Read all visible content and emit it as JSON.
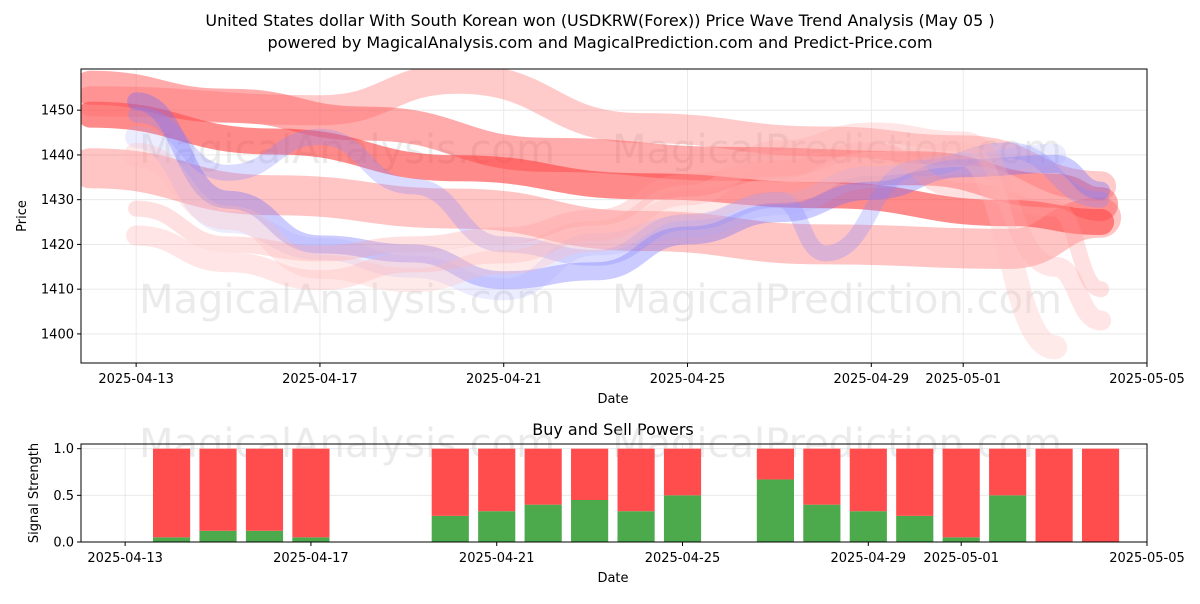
{
  "chart_data": [
    {
      "type": "line",
      "title_line1": "United States dollar With South Korean won (USDKRW(Forex)) Price Wave Trend Analysis (May 05 )",
      "title_line2": "powered by MagicalAnalysis.com and MagicalPrediction.com and Predict-Price.com",
      "xlabel": "Date",
      "ylabel": "Price",
      "ylim": [
        1393.5,
        1459.2
      ],
      "yticks": [
        1400,
        1410,
        1420,
        1430,
        1440,
        1450
      ],
      "xlim": [
        "2025-04-11.8",
        "2025-05-05.0"
      ],
      "xticks": [
        "2025-04-13",
        "2025-04-17",
        "2025-04-21",
        "2025-04-25",
        "2025-04-29",
        "2025-05-01",
        "2025-05-05"
      ],
      "watermarks": [
        "MagicalAnalysis.com",
        "MagicalPrediction.com",
        "MagicalAnalysis.com",
        "MagicalPrediction.com"
      ],
      "series": [
        {
          "name": "red-wave-main",
          "color": "#ff2a2a",
          "points": [
            [
              "2025-04-12",
              1449
            ],
            [
              "2025-04-16",
              1443
            ],
            [
              "2025-04-20",
              1437
            ],
            [
              "2025-04-24",
              1433
            ],
            [
              "2025-04-28",
              1431
            ],
            [
              "2025-05-02",
              1427
            ],
            [
              "2025-05-04",
              1425
            ]
          ]
        },
        {
          "name": "red-wave-upper",
          "color": "#ff4444",
          "points": [
            [
              "2025-04-12",
              1455
            ],
            [
              "2025-04-15",
              1451
            ],
            [
              "2025-04-18",
              1447
            ],
            [
              "2025-04-22",
              1440
            ],
            [
              "2025-04-26",
              1438
            ],
            [
              "2025-04-30",
              1437
            ],
            [
              "2025-05-03",
              1432
            ],
            [
              "2025-05-04",
              1429
            ]
          ]
        },
        {
          "name": "red-wave-lower",
          "color": "#ff5555",
          "points": [
            [
              "2025-04-12",
              1437
            ],
            [
              "2025-04-16",
              1431
            ],
            [
              "2025-04-20",
              1428
            ],
            [
              "2025-04-24",
              1423
            ],
            [
              "2025-04-28",
              1420
            ],
            [
              "2025-05-02",
              1419
            ],
            [
              "2025-05-04",
              1426
            ]
          ]
        },
        {
          "name": "red-wave-high",
          "color": "#ff6666",
          "points": [
            [
              "2025-04-12",
              1452
            ],
            [
              "2025-04-17",
              1450
            ],
            [
              "2025-04-20",
              1457
            ],
            [
              "2025-04-24",
              1446
            ],
            [
              "2025-04-28",
              1443
            ],
            [
              "2025-05-01",
              1441
            ],
            [
              "2025-05-04",
              1433
            ]
          ]
        },
        {
          "name": "blue-wave-1",
          "color": "#6b6bff",
          "points": [
            [
              "2025-04-13",
              1452
            ],
            [
              "2025-04-15",
              1430
            ],
            [
              "2025-04-17",
              1420
            ],
            [
              "2025-04-19",
              1418
            ],
            [
              "2025-04-21",
              1412
            ],
            [
              "2025-04-23",
              1414
            ],
            [
              "2025-04-25",
              1422
            ],
            [
              "2025-04-27",
              1427
            ],
            [
              "2025-04-29",
              1432
            ],
            [
              "2025-05-01",
              1437
            ],
            [
              "2025-05-03",
              1438
            ],
            [
              "2025-05-04",
              1432
            ]
          ]
        },
        {
          "name": "blue-wave-2",
          "color": "#8888ff",
          "points": [
            [
              "2025-04-13",
              1449
            ],
            [
              "2025-04-15",
              1436
            ],
            [
              "2025-04-17",
              1444
            ],
            [
              "2025-04-19",
              1433
            ],
            [
              "2025-04-21",
              1420
            ],
            [
              "2025-04-23",
              1417
            ],
            [
              "2025-04-25",
              1425
            ],
            [
              "2025-04-27",
              1430
            ],
            [
              "2025-04-28",
              1418
            ],
            [
              "2025-04-30",
              1437
            ],
            [
              "2025-05-02",
              1441
            ],
            [
              "2025-05-04",
              1430
            ]
          ]
        },
        {
          "name": "blue-wave-3",
          "color": "#aaaaff",
          "points": [
            [
              "2025-04-13",
              1444
            ],
            [
              "2025-04-15",
              1425
            ],
            [
              "2025-04-17",
              1419
            ],
            [
              "2025-04-19",
              1415
            ],
            [
              "2025-04-21",
              1410
            ],
            [
              "2025-04-23",
              1420
            ],
            [
              "2025-04-25",
              1424
            ],
            [
              "2025-04-27",
              1429
            ],
            [
              "2025-04-29",
              1435
            ],
            [
              "2025-05-01",
              1438
            ],
            [
              "2025-05-03",
              1440
            ]
          ]
        },
        {
          "name": "pink-wave-1",
          "color": "#ff9999",
          "points": [
            [
              "2025-04-13",
              1428
            ],
            [
              "2025-04-15",
              1420
            ],
            [
              "2025-04-17",
              1418
            ],
            [
              "2025-04-19",
              1420
            ],
            [
              "2025-04-21",
              1422
            ],
            [
              "2025-04-23",
              1426
            ],
            [
              "2025-04-25",
              1434
            ],
            [
              "2025-04-27",
              1437
            ],
            [
              "2025-04-29",
              1441
            ],
            [
              "2025-05-01",
              1432
            ],
            [
              "2025-05-03",
              1428
            ],
            [
              "2025-05-04",
              1410
            ]
          ]
        },
        {
          "name": "pink-wave-2",
          "color": "#ffaaaa",
          "points": [
            [
              "2025-04-13",
              1422
            ],
            [
              "2025-04-15",
              1416
            ],
            [
              "2025-04-17",
              1412
            ],
            [
              "2025-04-19",
              1416
            ],
            [
              "2025-04-21",
              1418
            ],
            [
              "2025-04-23",
              1423
            ],
            [
              "2025-04-25",
              1431
            ],
            [
              "2025-04-27",
              1441
            ],
            [
              "2025-04-29",
              1445
            ],
            [
              "2025-05-01",
              1443
            ],
            [
              "2025-05-03",
              1415
            ],
            [
              "2025-05-04",
              1403
            ]
          ]
        },
        {
          "name": "pink-wave-3",
          "color": "#ffbbbb",
          "points": [
            [
              "2025-04-13",
              1440
            ],
            [
              "2025-04-15",
              1426
            ],
            [
              "2025-04-17",
              1415
            ],
            [
              "2025-04-19",
              1412
            ],
            [
              "2025-04-21",
              1416
            ],
            [
              "2025-04-23",
              1421
            ],
            [
              "2025-04-25",
              1428
            ],
            [
              "2025-04-27",
              1432
            ],
            [
              "2025-04-29",
              1438
            ],
            [
              "2025-05-01",
              1440
            ],
            [
              "2025-05-03",
              1397
            ]
          ]
        }
      ]
    },
    {
      "type": "bar",
      "title": "Buy and Sell Powers",
      "xlabel": "Date",
      "ylabel": "Signal Strength",
      "ylim": [
        0,
        1.05
      ],
      "yticks": [
        "0.0",
        "0.5",
        "1.0"
      ],
      "xticks": [
        "2025-04-13",
        "2025-04-17",
        "2025-04-21",
        "2025-04-25",
        "2025-04-29",
        "2025-05-01",
        "2025-05-05"
      ],
      "buy_color": "#4caa4c",
      "sell_color": "#ff4d4d",
      "categories": [
        "2025-04-14",
        "2025-04-15",
        "2025-04-16",
        "2025-04-17",
        "2025-04-20",
        "2025-04-21",
        "2025-04-22",
        "2025-04-23",
        "2025-04-24",
        "2025-04-25",
        "2025-04-27",
        "2025-04-28",
        "2025-04-29",
        "2025-04-30",
        "2025-05-01",
        "2025-05-02",
        "2025-05-03",
        "2025-05-04"
      ],
      "series": [
        {
          "name": "buy",
          "values": [
            0.05,
            0.12,
            0.12,
            0.05,
            0.28,
            0.33,
            0.4,
            0.45,
            0.33,
            0.5,
            0.67,
            0.4,
            0.33,
            0.28,
            0.05,
            0.5,
            0.0,
            0.0
          ]
        },
        {
          "name": "sell",
          "values": [
            0.95,
            0.88,
            0.88,
            0.95,
            0.72,
            0.67,
            0.6,
            0.55,
            0.67,
            0.5,
            0.33,
            0.6,
            0.67,
            0.72,
            0.95,
            0.5,
            1.0,
            1.0
          ]
        }
      ],
      "watermarks": [
        "MagicalAnalysis.com",
        "MagicalPrediction.com"
      ]
    }
  ]
}
